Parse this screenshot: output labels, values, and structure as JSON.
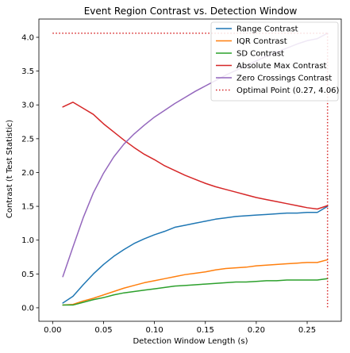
{
  "chart_data": {
    "type": "line",
    "title": "Event Region Contrast vs. Detection Window",
    "xlabel": "Detection Window Length (s)",
    "ylabel": "Contrast (t Test Statistic)",
    "xlim": [
      -0.0135,
      0.2835
    ],
    "ylim": [
      -0.2,
      4.27
    ],
    "x_ticks": [
      0.0,
      0.05,
      0.1,
      0.15,
      0.2,
      0.25
    ],
    "x_tick_labels": [
      "0.00",
      "0.05",
      "0.10",
      "0.15",
      "0.20",
      "0.25"
    ],
    "y_ticks": [
      0.0,
      0.5,
      1.0,
      1.5,
      2.0,
      2.5,
      3.0,
      3.5,
      4.0
    ],
    "y_tick_labels": [
      "0.0",
      "0.5",
      "1.0",
      "1.5",
      "2.0",
      "2.5",
      "3.0",
      "3.5",
      "4.0"
    ],
    "grid": false,
    "legend_position": "top-right",
    "x": [
      0.01,
      0.02,
      0.03,
      0.04,
      0.05,
      0.06,
      0.07,
      0.08,
      0.09,
      0.1,
      0.11,
      0.12,
      0.13,
      0.14,
      0.15,
      0.16,
      0.17,
      0.18,
      0.19,
      0.2,
      0.21,
      0.22,
      0.23,
      0.24,
      0.25,
      0.26,
      0.27
    ],
    "series": [
      {
        "name": "Range Contrast",
        "color": "#1f77b4",
        "values": [
          0.07,
          0.17,
          0.34,
          0.5,
          0.64,
          0.76,
          0.86,
          0.95,
          1.02,
          1.08,
          1.13,
          1.19,
          1.22,
          1.25,
          1.28,
          1.31,
          1.33,
          1.35,
          1.36,
          1.37,
          1.38,
          1.39,
          1.4,
          1.4,
          1.41,
          1.41,
          1.5
        ]
      },
      {
        "name": "IQR Contrast",
        "color": "#ff7f0e",
        "values": [
          0.04,
          0.05,
          0.1,
          0.14,
          0.19,
          0.24,
          0.29,
          0.33,
          0.37,
          0.4,
          0.43,
          0.46,
          0.49,
          0.51,
          0.53,
          0.56,
          0.58,
          0.59,
          0.6,
          0.62,
          0.63,
          0.64,
          0.65,
          0.66,
          0.67,
          0.67,
          0.71
        ]
      },
      {
        "name": "SD Contrast",
        "color": "#2ca02c",
        "values": [
          0.04,
          0.04,
          0.08,
          0.12,
          0.15,
          0.19,
          0.22,
          0.24,
          0.26,
          0.28,
          0.3,
          0.32,
          0.33,
          0.34,
          0.35,
          0.36,
          0.37,
          0.38,
          0.38,
          0.39,
          0.4,
          0.4,
          0.41,
          0.41,
          0.41,
          0.41,
          0.43
        ]
      },
      {
        "name": "Absolute Max Contrast",
        "color": "#d62728",
        "values": [
          2.97,
          3.04,
          2.95,
          2.86,
          2.72,
          2.6,
          2.48,
          2.37,
          2.27,
          2.19,
          2.1,
          2.03,
          1.96,
          1.9,
          1.84,
          1.79,
          1.75,
          1.71,
          1.67,
          1.63,
          1.6,
          1.57,
          1.54,
          1.51,
          1.48,
          1.46,
          1.51
        ]
      },
      {
        "name": "Zero Crossings Contrast",
        "color": "#9467bd",
        "values": [
          0.46,
          0.9,
          1.33,
          1.7,
          1.99,
          2.23,
          2.42,
          2.57,
          2.7,
          2.82,
          2.92,
          3.02,
          3.11,
          3.2,
          3.28,
          3.36,
          3.44,
          3.51,
          3.58,
          3.65,
          3.72,
          3.78,
          3.84,
          3.9,
          3.95,
          3.98,
          4.06
        ]
      }
    ],
    "reference_lines": {
      "name": "Optimal Point (0.27, 4.06)",
      "color": "#d62728",
      "style": "dotted",
      "x": 0.27,
      "y": 4.06
    }
  }
}
